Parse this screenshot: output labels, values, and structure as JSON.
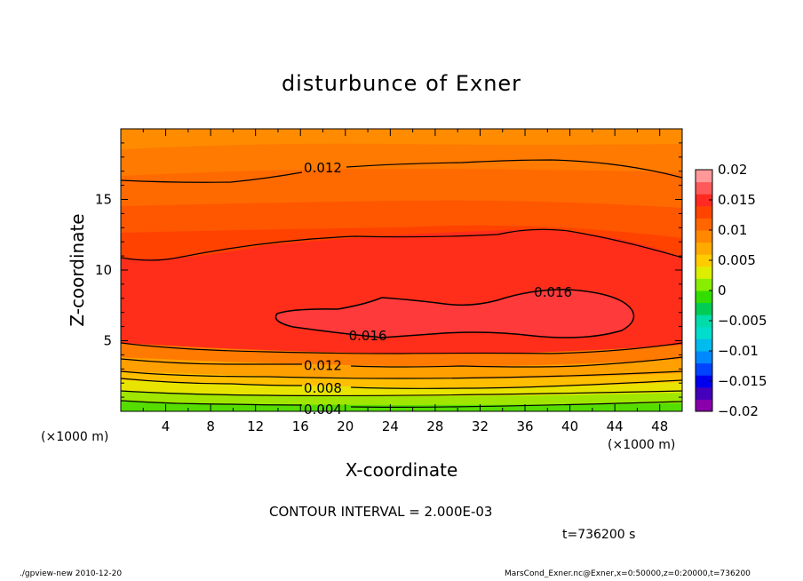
{
  "chart_data": {
    "type": "heatmap",
    "title": "disturbunce of Exner",
    "xlabel": "X-coordinate",
    "ylabel": "Z-coordinate",
    "x_unit": "(×1000 m)",
    "y_unit": "(×1000 m)",
    "xlim": [
      0,
      50
    ],
    "ylim": [
      0,
      20
    ],
    "x_ticks": [
      "4",
      "8",
      "12",
      "16",
      "20",
      "24",
      "28",
      "32",
      "36",
      "40",
      "44",
      "48"
    ],
    "y_ticks": [
      "5",
      "10",
      "15"
    ],
    "contour_labels": [
      {
        "text": "0.012",
        "x": 18,
        "y": 17.3
      },
      {
        "text": "0.016",
        "x": 38.5,
        "y": 8.5
      },
      {
        "text": "0.016",
        "x": 22,
        "y": 5.4
      },
      {
        "text": "0.012",
        "x": 18,
        "y": 3.3
      },
      {
        "text": "0.008",
        "x": 18,
        "y": 1.7
      },
      {
        "text": "0.004",
        "x": 18,
        "y": 0.2
      }
    ],
    "colorbar": {
      "ticks": [
        "0.02",
        "0.015",
        "0.01",
        "0.005",
        "0",
        "−0.005",
        "−0.01",
        "−0.015",
        "−0.02"
      ],
      "min": -0.02,
      "max": 0.02,
      "colors": [
        "#8800aa",
        "#4400bb",
        "#0000ee",
        "#0044ff",
        "#0088ff",
        "#00bbee",
        "#00ddcc",
        "#00ddaa",
        "#00cc55",
        "#33dd00",
        "#88ee00",
        "#ddee00",
        "#ffcc00",
        "#ffaa00",
        "#ff8800",
        "#ff6600",
        "#ff4400",
        "#ff2a22",
        "#ff5a5a",
        "#ff9999"
      ]
    },
    "contour_interval": "CONTOUR INTERVAL = 2.000E-03",
    "time": "t=736200 s"
  },
  "footer": {
    "left": "./gpview-new   2010-12-20",
    "right": "MarsCond_Exner.nc@Exner,x=0:50000,z=0:20000,t=736200"
  }
}
